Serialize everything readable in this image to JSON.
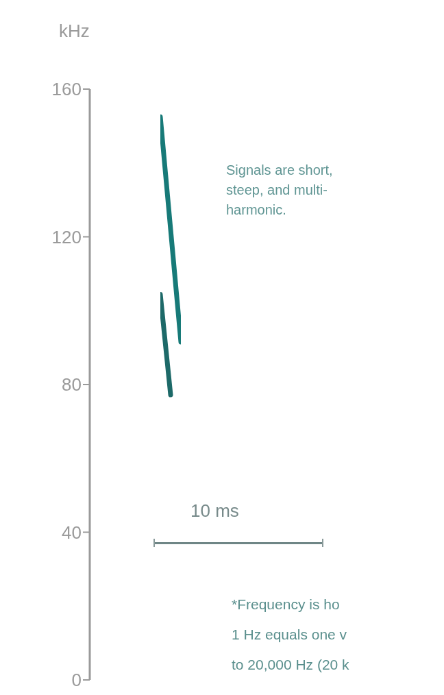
{
  "chart_data": {
    "type": "line",
    "ylabel": "kHz",
    "ylim": [
      0,
      160
    ],
    "yticks": [
      0,
      40,
      80,
      120,
      160
    ],
    "tick_labels": "y",
    "categories": [
      null,
      null,
      null
    ],
    "series": [
      {
        "color": "#177a78",
        "values": [
          152.5,
          122,
          91.5
        ]
      },
      {
        "color": "#1d6968",
        "values": [
          104.4,
          77.2,
          null
        ]
      }
    ],
    "annotations": [
      "Signals are short, steep, and multi-harmonic.",
      "10 ms",
      "*Frequency is ho",
      "1 Hz equals one v",
      "to 20,000 Hz (20 k"
    ]
  }
}
